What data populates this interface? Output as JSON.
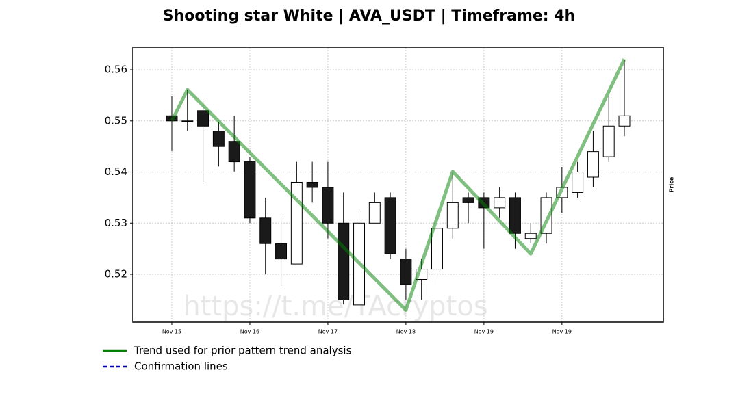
{
  "chart_data": {
    "type": "candlestick",
    "title": "Shooting star White | AVA_USDT | Timeframe: 4h",
    "ylabel": "Price",
    "watermark": "https://t.me/TAcryptos",
    "open": [
      0.551,
      0.55,
      0.552,
      0.548,
      0.546,
      0.542,
      0.531,
      0.526,
      0.522,
      0.538,
      0.537,
      0.53,
      0.514,
      0.53,
      0.535,
      0.523,
      0.519,
      0.521,
      0.529,
      0.535,
      0.535,
      0.533,
      0.535,
      0.527,
      0.528,
      0.535,
      0.536,
      0.539,
      0.543,
      0.549
    ],
    "high": [
      0.5548,
      0.5561,
      0.5538,
      0.5498,
      0.551,
      0.543,
      0.535,
      0.531,
      0.542,
      0.542,
      0.542,
      0.536,
      0.532,
      0.536,
      0.536,
      0.525,
      0.5231,
      0.529,
      0.5399,
      0.536,
      0.536,
      0.537,
      0.536,
      0.53,
      0.536,
      0.541,
      0.542,
      0.548,
      0.5549,
      0.562
    ],
    "low": [
      0.5441,
      0.5481,
      0.5381,
      0.5411,
      0.5401,
      0.53,
      0.52,
      0.5172,
      0.522,
      0.534,
      0.527,
      0.5141,
      0.514,
      0.53,
      0.523,
      0.515,
      0.515,
      0.518,
      0.527,
      0.53,
      0.525,
      0.531,
      0.525,
      0.526,
      0.526,
      0.532,
      0.535,
      0.537,
      0.542,
      0.547
    ],
    "close": [
      0.55,
      0.55,
      0.549,
      0.545,
      0.542,
      0.531,
      0.526,
      0.523,
      0.538,
      0.537,
      0.53,
      0.515,
      0.53,
      0.534,
      0.524,
      0.518,
      0.521,
      0.529,
      0.534,
      0.534,
      0.533,
      0.535,
      0.528,
      0.528,
      0.535,
      0.537,
      0.54,
      0.544,
      0.549,
      0.551
    ],
    "up_color": "#ffffff",
    "down_color": "#1a1a1a",
    "xlim": [
      -2.5,
      31.5
    ],
    "ylim": [
      0.51064,
      0.56442
    ],
    "xticks": [
      {
        "value": 0,
        "label": "Nov 15"
      },
      {
        "value": 5,
        "label": "Nov 16"
      },
      {
        "value": 10,
        "label": "Nov 17"
      },
      {
        "value": 15,
        "label": "Nov 18"
      },
      {
        "value": 20,
        "label": "Nov 19"
      },
      {
        "value": 25,
        "label": "Nov 19"
      }
    ],
    "yticks": [
      0.52,
      0.53,
      0.54,
      0.55,
      0.56
    ],
    "grid": true,
    "series": [
      {
        "name": "Trend used for prior pattern trend analysis",
        "color": "#008000",
        "x": [
          0,
          1,
          15,
          18,
          23,
          29
        ],
        "values": [
          0.55,
          0.5561,
          0.513,
          0.5401,
          0.524,
          0.5621
        ]
      },
      {
        "name": "Confirmation lines",
        "color": "#0000aa",
        "x": [],
        "values": []
      }
    ]
  }
}
